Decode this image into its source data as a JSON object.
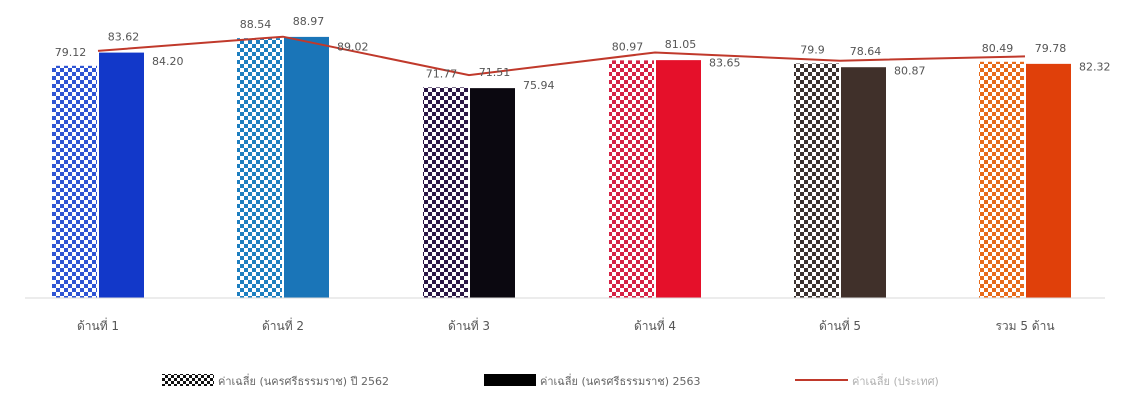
{
  "chart_data": {
    "type": "bar",
    "categories": [
      "ด้านที่ 1",
      "ด้านที่ 2",
      "ด้านที่ 3",
      "ด้านที่ 4",
      "ด้านที่ 5",
      "รวม 5 ด้าน"
    ],
    "series": [
      {
        "name": "ค่าเฉลี่ย (นครศรีธรรมราช) ปี 2562",
        "kind": "bar",
        "pattern": "checkered",
        "values": [
          79.12,
          88.54,
          71.77,
          80.97,
          79.9,
          80.49
        ],
        "labels": [
          "79.12",
          "88.54",
          "71.77",
          "80.97",
          "79.9",
          "80.49"
        ]
      },
      {
        "name": "ค่าเฉลี่ย (นครศรีธรรมราช) 2563",
        "kind": "bar",
        "pattern": "solid",
        "values": [
          83.62,
          88.97,
          71.51,
          81.05,
          78.64,
          79.78
        ],
        "labels": [
          "83.62",
          "88.97",
          "71.51",
          "81.05",
          "78.64",
          "79.78"
        ]
      },
      {
        "name": "ค่าเฉลี่ย (ประเทศ)",
        "kind": "line",
        "color": "#c0392b",
        "values": [
          84.2,
          89.02,
          75.94,
          83.65,
          80.87,
          82.32
        ],
        "labels": [
          "84.20",
          "89.02",
          "75.94",
          "83.65",
          "80.87",
          "82.32"
        ]
      }
    ],
    "category_colors": [
      {
        "pattern": "#2f55d4",
        "solid": "#1238c9"
      },
      {
        "pattern": "#1e7fc0",
        "solid": "#1a75b8"
      },
      {
        "pattern": "#2b1746",
        "solid": "#0b0810"
      },
      {
        "pattern": "#d62245",
        "solid": "#e5102a"
      },
      {
        "pattern": "#3b3230",
        "solid": "#40302a"
      },
      {
        "pattern": "#e86a1a",
        "solid": "#e0400a"
      }
    ],
    "ylim": [
      0,
      92
    ],
    "grid": false,
    "legend": "bottom"
  }
}
